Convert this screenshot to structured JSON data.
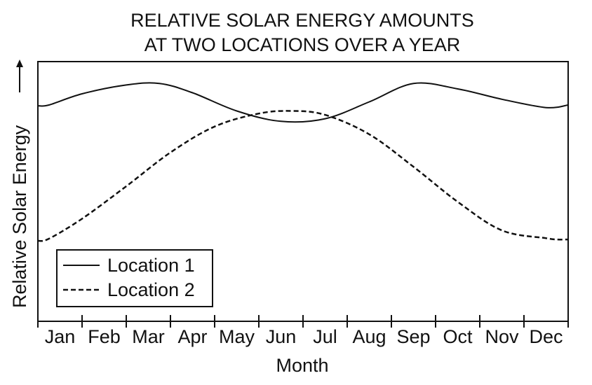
{
  "chart_data": {
    "type": "line",
    "title": [
      "RELATIVE SOLAR ENERGY AMOUNTS",
      "AT TWO LOCATIONS OVER A YEAR"
    ],
    "xlabel": "Month",
    "ylabel": "Relative Solar Energy",
    "y_tick_labels": false,
    "categories": [
      "Jan",
      "Feb",
      "Mar",
      "Apr",
      "May",
      "Jun",
      "Jul",
      "Aug",
      "Sep",
      "Oct",
      "Nov",
      "Dec"
    ],
    "ylim": [
      0,
      100
    ],
    "grid": false,
    "legend_position": "bottom-left",
    "series": [
      {
        "name": "Location 1",
        "style": "solid",
        "color": "#111111",
        "x": [
          0.0,
          0.25,
          1.0,
          2.0,
          2.75,
          3.5,
          4.5,
          5.5,
          6.5,
          7.5,
          8.5,
          9.5,
          10.5,
          11.5,
          12.0
        ],
        "values": [
          83.0,
          83.3,
          87.6,
          91.0,
          91.6,
          88.0,
          81.0,
          77.0,
          78.0,
          84.5,
          91.6,
          89.5,
          85.5,
          82.3,
          83.3
        ]
      },
      {
        "name": "Location 2",
        "style": "dashed",
        "color": "#111111",
        "x": [
          0.0,
          0.25,
          1.0,
          2.0,
          3.0,
          4.0,
          5.0,
          5.75,
          6.5,
          7.5,
          8.5,
          9.5,
          10.5,
          11.5,
          11.75,
          12.0
        ],
        "values": [
          31.0,
          31.8,
          39.5,
          52.0,
          65.0,
          75.0,
          80.0,
          81.0,
          79.5,
          72.0,
          59.5,
          46.0,
          35.0,
          32.0,
          31.5,
          31.5
        ]
      }
    ]
  }
}
